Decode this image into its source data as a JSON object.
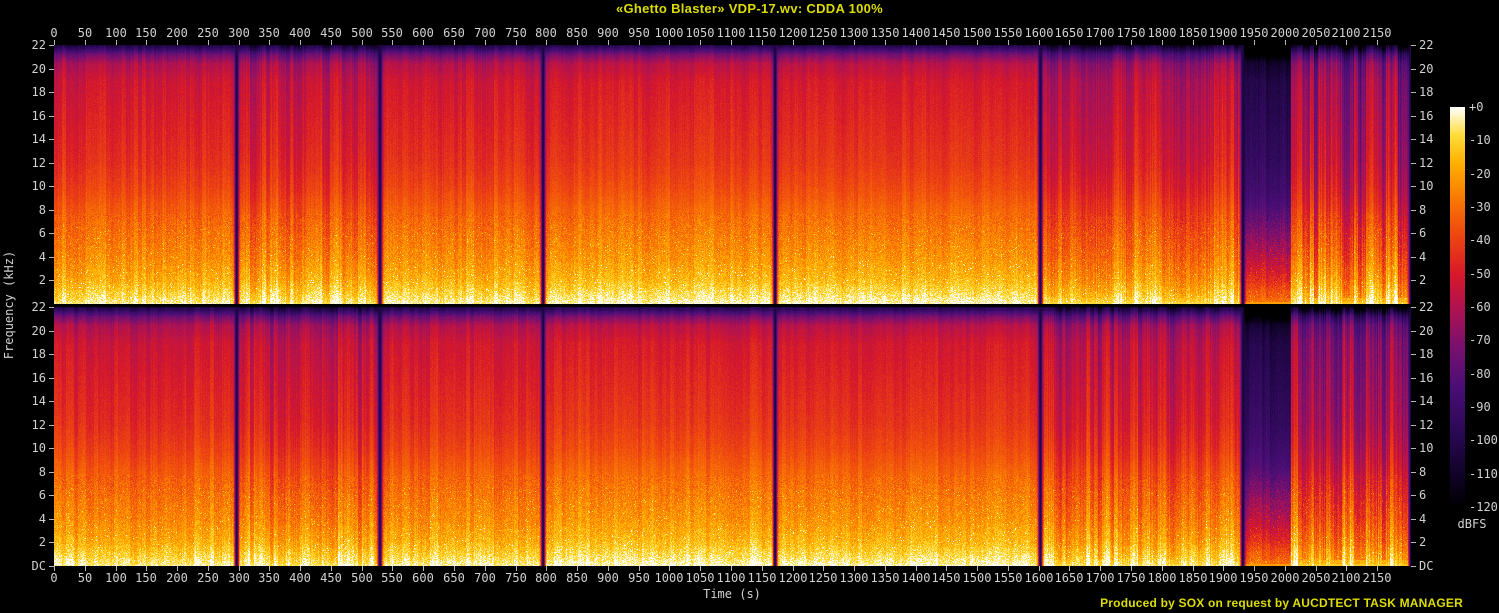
{
  "chart_data": {
    "type": "heatmap",
    "subtype": "audio-spectrogram",
    "title": "«Ghetto Blaster» VDP-17.wv: CDDA 100%",
    "credit": "Produced by SOX on request by AUCDTECT TASK MANAGER",
    "xlabel": "Time (s)",
    "ylabel": "Frequency (kHz)",
    "channels": 2,
    "x_range_s": [
      0,
      2205
    ],
    "x_tick_interval_s": 50,
    "x_ticks": [
      0,
      50,
      100,
      150,
      200,
      250,
      300,
      350,
      400,
      450,
      500,
      550,
      600,
      650,
      700,
      750,
      800,
      850,
      900,
      950,
      1000,
      1050,
      1100,
      1150,
      1200,
      1250,
      1300,
      1350,
      1400,
      1450,
      1500,
      1550,
      1600,
      1650,
      1700,
      1750,
      1800,
      1850,
      1900,
      1950,
      2000,
      2050,
      2100,
      2150
    ],
    "freq_range_khz": [
      0,
      22
    ],
    "freq_ticks_khz": [
      22,
      20,
      18,
      16,
      14,
      12,
      10,
      8,
      6,
      4,
      2
    ],
    "dc_label": "DC",
    "colorbar": {
      "unit_label": "dBFS",
      "labels": [
        "+0",
        "-10",
        "-20",
        "-30",
        "-40",
        "-50",
        "-60",
        "-70",
        "-80",
        "-90",
        "-100",
        "-110",
        "-120"
      ],
      "range_db": [
        0,
        -120
      ]
    },
    "track_boundaries_s": [
      296,
      529,
      794,
      1171,
      1602,
      1931,
      2204
    ],
    "quiet_section_s": [
      1931,
      2010
    ],
    "sections": [
      {
        "t1": 296,
        "level_offset": 0.0,
        "stripe": 0.05,
        "high_dip": 0.0
      },
      {
        "t1": 529,
        "level_offset": -0.015,
        "stripe": 0.09,
        "high_dip": 0.02
      },
      {
        "t1": 794,
        "level_offset": 0.005,
        "stripe": 0.05,
        "high_dip": 0.0
      },
      {
        "t1": 1171,
        "level_offset": 0.02,
        "stripe": 0.04,
        "high_dip": 0.0
      },
      {
        "t1": 1602,
        "level_offset": 0.015,
        "stripe": 0.035,
        "high_dip": 0.0
      },
      {
        "t1": 1931,
        "level_offset": -0.02,
        "stripe": 0.1,
        "high_dip": 0.02
      },
      {
        "t1": 2010,
        "level_offset": -0.2,
        "stripe": 0.06,
        "high_dip": 0.2
      },
      {
        "t1": 2205,
        "level_offset": -0.06,
        "stripe": 0.16,
        "high_dip": 0.06
      }
    ],
    "freq_profile_stops": [
      [
        0.0,
        0.97
      ],
      [
        0.03,
        0.93
      ],
      [
        0.09,
        0.86
      ],
      [
        0.18,
        0.8
      ],
      [
        0.27,
        0.76
      ],
      [
        0.36,
        0.72
      ],
      [
        0.45,
        0.67
      ],
      [
        0.55,
        0.63
      ],
      [
        0.73,
        0.59
      ],
      [
        0.86,
        0.56
      ],
      [
        0.93,
        0.5
      ],
      [
        0.965,
        0.38
      ],
      [
        1.0,
        0.14
      ]
    ],
    "palette_stops": [
      [
        0.0,
        "#000000"
      ],
      [
        0.08,
        "#100228"
      ],
      [
        0.18,
        "#280852"
      ],
      [
        0.3,
        "#4a0e76"
      ],
      [
        0.4,
        "#78106e"
      ],
      [
        0.5,
        "#b01250"
      ],
      [
        0.58,
        "#d6182a"
      ],
      [
        0.68,
        "#ee4610"
      ],
      [
        0.78,
        "#fa7d02"
      ],
      [
        0.86,
        "#ffb002"
      ],
      [
        0.93,
        "#ffdc38"
      ],
      [
        1.0,
        "#ffffff"
      ]
    ],
    "text_colors": {
      "annotation_yellow": "#dcdc00",
      "tick_gray": "#d2d2d2"
    }
  }
}
